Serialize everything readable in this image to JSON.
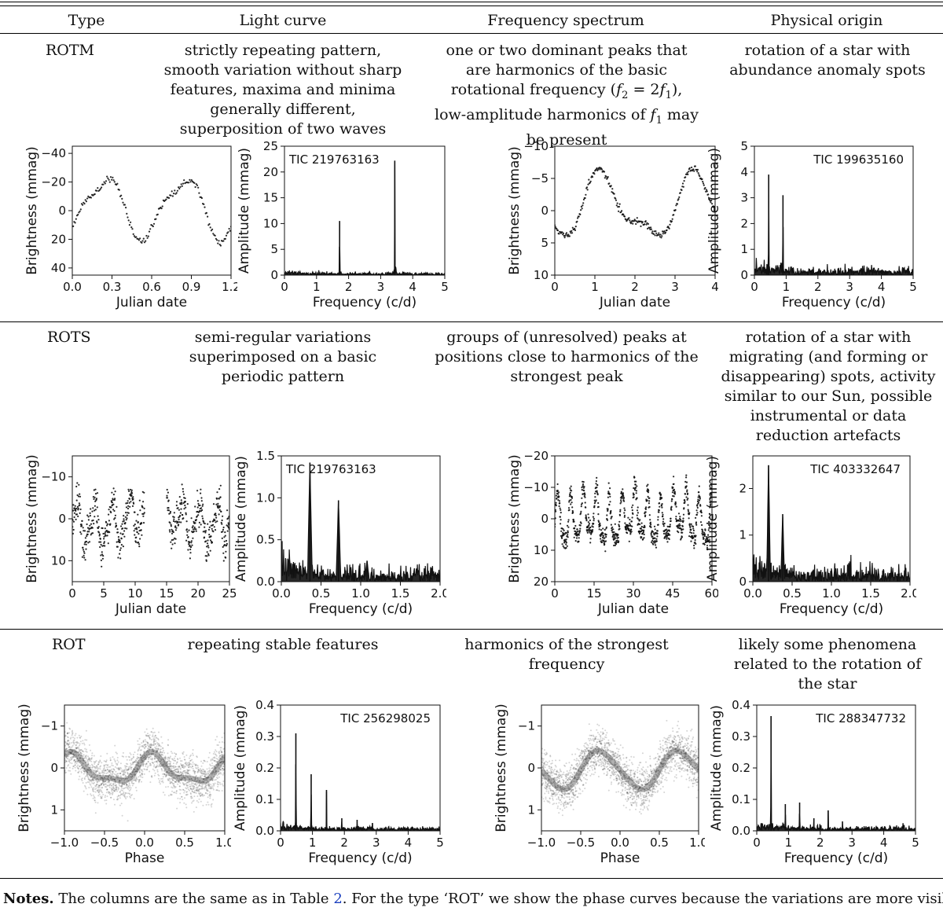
{
  "header": {
    "type": "Type",
    "light_curve": "Light curve",
    "frequency_spectrum": "Frequency spectrum",
    "physical_origin": "Physical origin"
  },
  "rows": [
    {
      "type": "ROTM",
      "light_curve_desc": "strictly repeating pattern, smooth variation without sharp features, maxima and minima generally different, superposition of two waves",
      "freq_desc_a": "one or two dominant peaks that are harmonics of the basic rotational frequency (",
      "freq_desc_f2": "f",
      "freq_desc_mid": " = 2",
      "freq_desc_f1": "f",
      "freq_desc_b": "), low-amplitude harmonics of ",
      "freq_desc_f1b": "f",
      "freq_desc_c": " may be present",
      "origin_desc": "rotation of a star with abundance anomaly spots"
    },
    {
      "type": "ROTS",
      "light_curve_desc": "semi-regular variations superimposed on a basic periodic pattern",
      "freq_desc": "groups of (unresolved) peaks at positions close to harmonics of the strongest peak",
      "origin_desc": "rotation of a star with migrating (and forming or disappearing) spots, activity similar to our Sun, possible instrumental or data reduction artefacts"
    },
    {
      "type": "ROT",
      "light_curve_desc": "repeating stable features",
      "freq_desc": "harmonics of the strongest frequency",
      "origin_desc": "likely some phenomena related to the rotation of the star"
    }
  ],
  "notes": {
    "label": "Notes.",
    "text_a": " The columns are the same as in Table ",
    "table_ref": "2",
    "text_b": ". For the type ‘ROT’ we show the phase curves because the variations are more visible."
  },
  "chart_data": [
    {
      "id": "p1",
      "type": "scatter",
      "xlabel": "Julian date",
      "ylabel": "Brightness (mmag)",
      "xlim": [
        0,
        1.2
      ],
      "ylim": [
        -45,
        45
      ],
      "y_inverted": true,
      "xticks": [
        0,
        0.3,
        0.6,
        0.9,
        1.2
      ],
      "xtick_labels": [
        "0.0",
        "0.3",
        "0.6",
        "0.9",
        "1.2"
      ],
      "yticks": [
        -40,
        -20,
        0,
        20,
        40
      ],
      "ytick_labels": [
        "−40",
        "−20",
        "0",
        "20",
        "40"
      ],
      "model": {
        "kind": "sum_sin",
        "period": 0.6,
        "terms": [
          [
            -20,
            1,
            0.85
          ],
          [
            -5,
            2,
            0.1
          ]
        ],
        "offset": -2
      },
      "n_points": 170,
      "noise": 1.2
    },
    {
      "id": "p2",
      "type": "bar",
      "xlabel": "Frequency (c/d)",
      "ylabel": "Amplitude (mmag)",
      "xlim": [
        0,
        5
      ],
      "ylim": [
        0,
        25
      ],
      "label": "TIC 219763163",
      "xticks": [
        0,
        1,
        2,
        3,
        4,
        5
      ],
      "xtick_labels": [
        "0",
        "1",
        "2",
        "3",
        "4",
        "5"
      ],
      "yticks": [
        0,
        5,
        10,
        15,
        20,
        25
      ],
      "ytick_labels": [
        "0",
        "5",
        "10",
        "15",
        "20",
        "25"
      ],
      "peaks": [
        [
          1.72,
          10.5
        ],
        [
          3.44,
          22.2
        ]
      ],
      "noise": 0.4
    },
    {
      "id": "p3",
      "type": "scatter",
      "xlabel": "Julian date",
      "ylabel": "Brightness (mmag)",
      "xlim": [
        0,
        4
      ],
      "ylim": [
        -10,
        10
      ],
      "y_inverted": true,
      "xticks": [
        0,
        1,
        2,
        3,
        4
      ],
      "xtick_labels": [
        "0",
        "1",
        "2",
        "3",
        "4"
      ],
      "yticks": [
        -10,
        -5,
        0,
        5,
        10
      ],
      "ytick_labels": [
        "−10",
        "−5",
        "0",
        "5",
        "10"
      ],
      "model": {
        "kind": "sum_sin",
        "period": 2.35,
        "terms": [
          [
            -4.5,
            1,
            0.75
          ],
          [
            -1.8,
            2,
            0.35
          ]
        ],
        "offset": -0.4
      },
      "n_points": 260,
      "noise": 0.25
    },
    {
      "id": "p4",
      "type": "bar",
      "xlabel": "Frequency (c/d)",
      "ylabel": "Amplitude (mmag)",
      "xlim": [
        0,
        5
      ],
      "ylim": [
        0,
        5
      ],
      "label": "TIC 199635160",
      "xticks": [
        0,
        1,
        2,
        3,
        4,
        5
      ],
      "xtick_labels": [
        "0",
        "1",
        "2",
        "3",
        "4",
        "5"
      ],
      "yticks": [
        0,
        1,
        2,
        3,
        4,
        5
      ],
      "ytick_labels": [
        "0",
        "1",
        "2",
        "3",
        "4",
        "5"
      ],
      "peaks": [
        [
          0.45,
          3.9
        ],
        [
          0.9,
          3.1
        ]
      ],
      "noise": 0.25
    },
    {
      "id": "p5",
      "type": "scatter",
      "xlabel": "Julian date",
      "ylabel": "Brightness (mmag)",
      "xlim": [
        0,
        25
      ],
      "ylim": [
        -15,
        15
      ],
      "y_inverted": true,
      "xticks": [
        0,
        5,
        10,
        15,
        20,
        25
      ],
      "xtick_labels": [
        "0",
        "5",
        "10",
        "15",
        "20",
        "25"
      ],
      "yticks": [
        -10,
        0,
        10
      ],
      "ytick_labels": [
        "−10",
        "0",
        "10"
      ],
      "model": {
        "kind": "sum_sin",
        "period": 2.8,
        "terms": [
          [
            -4.5,
            1,
            0
          ],
          [
            -1.5,
            2,
            0.5
          ]
        ],
        "offset": 0
      },
      "gap": [
        11.5,
        15
      ],
      "n_points": 700,
      "noise": 2.2
    },
    {
      "id": "p6",
      "type": "bar",
      "xlabel": "Frequency (c/d)",
      "ylabel": "Amplitude (mmag)",
      "xlim": [
        0,
        2
      ],
      "ylim": [
        0,
        1.5
      ],
      "label": "TIC 219763163",
      "xticks": [
        0,
        0.5,
        1,
        1.5,
        2
      ],
      "xtick_labels": [
        "0.0",
        "0.5",
        "1.0",
        "1.5",
        "2.0"
      ],
      "yticks": [
        0,
        0.5,
        1,
        1.5
      ],
      "ytick_labels": [
        "0.0",
        "0.5",
        "1.0",
        "1.5"
      ],
      "peaks": [
        [
          0.36,
          1.42
        ],
        [
          0.72,
          0.97
        ],
        [
          1.08,
          0.25
        ]
      ],
      "noise": 0.14,
      "broad": 0.05
    },
    {
      "id": "p7",
      "type": "scatter",
      "xlabel": "Julian date",
      "ylabel": "Brightness (mmag)",
      "xlim": [
        0,
        60
      ],
      "ylim": [
        -20,
        20
      ],
      "y_inverted": true,
      "xticks": [
        0,
        15,
        30,
        45,
        60
      ],
      "xtick_labels": [
        "0",
        "15",
        "30",
        "45",
        "60"
      ],
      "yticks": [
        -20,
        -10,
        0,
        10,
        20
      ],
      "ytick_labels": [
        "−20",
        "−10",
        "0",
        "10",
        "20"
      ],
      "model": {
        "kind": "sum_sin",
        "period": 4.9,
        "terms": [
          [
            -7,
            1,
            0
          ],
          [
            -2.5,
            2,
            0.8
          ]
        ],
        "offset": 0
      },
      "n_points": 900,
      "noise": 1.6
    },
    {
      "id": "p8",
      "type": "bar",
      "xlabel": "Frequency (c/d)",
      "ylabel": "Amplitude (mmag)",
      "xlim": [
        0,
        2
      ],
      "ylim": [
        0,
        2.7
      ],
      "label": "TIC 403332647",
      "xticks": [
        0,
        0.5,
        1,
        1.5,
        2
      ],
      "xtick_labels": [
        "0.0",
        "0.5",
        "1.0",
        "1.5",
        "2.0"
      ],
      "yticks": [
        0,
        1,
        2
      ],
      "ytick_labels": [
        "0",
        "1",
        "2"
      ],
      "peaks": [
        [
          0.2,
          2.5
        ],
        [
          0.38,
          1.45
        ]
      ],
      "noise": 0.25,
      "broad": 0.04
    },
    {
      "id": "p9",
      "type": "scatter",
      "xlabel": "Phase",
      "ylabel": "Brightness (mmag)",
      "xlim": [
        -1,
        1
      ],
      "ylim": [
        -1.5,
        1.5
      ],
      "y_inverted": true,
      "xticks": [
        -1,
        -0.5,
        0,
        0.5,
        1
      ],
      "xtick_labels": [
        "−1.0",
        "−0.5",
        "0.0",
        "0.5",
        "1.0"
      ],
      "yticks": [
        -1,
        0,
        1
      ],
      "ytick_labels": [
        "−1",
        "0",
        "1"
      ],
      "model": {
        "kind": "sum_sin",
        "period": 1,
        "terms": [
          [
            -0.32,
            1,
            0.15
          ],
          [
            -0.12,
            2,
            0.1
          ]
        ],
        "offset": 0.05
      },
      "n_points": 2200,
      "noise": 0.26,
      "faint": true
    },
    {
      "id": "p10",
      "type": "bar",
      "xlabel": "Frequency (c/d)",
      "ylabel": "Amplitude (mmag)",
      "xlim": [
        0,
        5
      ],
      "ylim": [
        0,
        0.4
      ],
      "label": "TIC 256298025",
      "xticks": [
        0,
        1,
        2,
        3,
        4,
        5
      ],
      "xtick_labels": [
        "0",
        "1",
        "2",
        "3",
        "4",
        "5"
      ],
      "yticks": [
        0,
        0.1,
        0.2,
        0.3,
        0.4
      ],
      "ytick_labels": [
        "0.0",
        "0.1",
        "0.2",
        "0.3",
        "0.4"
      ],
      "peaks": [
        [
          0.48,
          0.31
        ],
        [
          0.96,
          0.18
        ],
        [
          1.44,
          0.13
        ],
        [
          1.92,
          0.04
        ],
        [
          2.4,
          0.035
        ],
        [
          2.88,
          0.025
        ]
      ],
      "noise": 0.01
    },
    {
      "id": "p11",
      "type": "scatter",
      "xlabel": "Phase",
      "ylabel": "Brightness (mmag)",
      "xlim": [
        -1,
        1
      ],
      "ylim": [
        -1.5,
        1.5
      ],
      "y_inverted": true,
      "xticks": [
        -1,
        -0.5,
        0,
        0.5,
        1
      ],
      "xtick_labels": [
        "−1.0",
        "−0.5",
        "0.0",
        "0.5",
        "1.0"
      ],
      "yticks": [
        -1,
        0,
        1
      ],
      "ytick_labels": [
        "−1",
        "0",
        "1"
      ],
      "model": {
        "kind": "sum_sin",
        "period": 1,
        "terms": [
          [
            -0.45,
            1,
            0.5
          ],
          [
            -0.05,
            2,
            0
          ]
        ],
        "offset": 0.05
      },
      "n_points": 2200,
      "noise": 0.26,
      "faint": true
    },
    {
      "id": "p12",
      "type": "bar",
      "xlabel": "Frequency (c/d)",
      "ylabel": "Amplitude (mmag)",
      "xlim": [
        0,
        5
      ],
      "ylim": [
        0,
        0.4
      ],
      "label": "TIC 288347732",
      "xticks": [
        0,
        1,
        2,
        3,
        4,
        5
      ],
      "xtick_labels": [
        "0",
        "1",
        "2",
        "3",
        "4",
        "5"
      ],
      "yticks": [
        0,
        0.1,
        0.2,
        0.3,
        0.4
      ],
      "ytick_labels": [
        "0.0",
        "0.1",
        "0.2",
        "0.3",
        "0.4"
      ],
      "peaks": [
        [
          0.45,
          0.365
        ],
        [
          0.9,
          0.085
        ],
        [
          1.35,
          0.09
        ],
        [
          1.8,
          0.04
        ],
        [
          2.25,
          0.065
        ],
        [
          2.7,
          0.03
        ],
        [
          3.15,
          0.015
        ]
      ],
      "noise": 0.012
    }
  ]
}
